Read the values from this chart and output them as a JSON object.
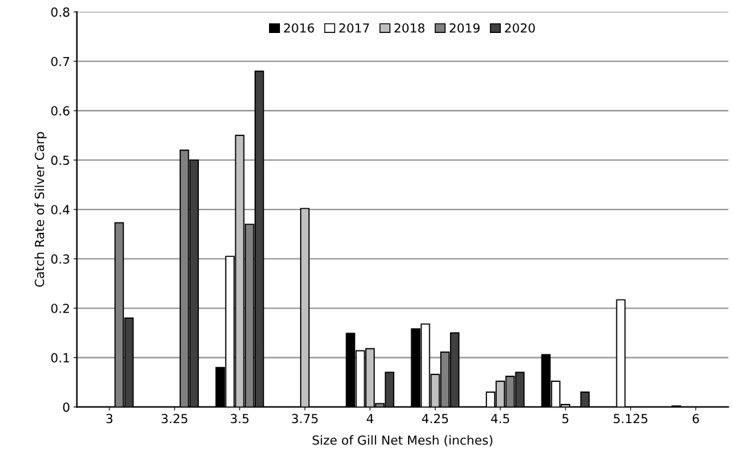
{
  "chart_data": {
    "type": "bar",
    "xlabel": "Size of Gill Net Mesh (inches)",
    "ylabel": "Catch Rate of Silver Carp",
    "categories": [
      "3",
      "3.25",
      "3.5",
      "3.75",
      "4",
      "4.25",
      "4.5",
      "5",
      "5.125",
      "6"
    ],
    "series": [
      {
        "name": "2016",
        "color": "#000000",
        "values": [
          null,
          null,
          0.08,
          null,
          0.149,
          0.158,
          null,
          0.106,
          null,
          0.002
        ]
      },
      {
        "name": "2017",
        "color": "#ffffff",
        "values": [
          null,
          null,
          0.305,
          null,
          0.114,
          0.168,
          0.03,
          0.052,
          0.217,
          null
        ]
      },
      {
        "name": "2018",
        "color": "#c0c0c0",
        "values": [
          null,
          null,
          0.55,
          0.402,
          0.118,
          0.066,
          0.052,
          0.005,
          null,
          null
        ]
      },
      {
        "name": "2019",
        "color": "#808080",
        "values": [
          0.373,
          0.52,
          0.37,
          null,
          0.007,
          0.111,
          0.062,
          null,
          null,
          null
        ]
      },
      {
        "name": "2020",
        "color": "#404040",
        "values": [
          0.18,
          0.5,
          0.68,
          null,
          0.07,
          0.15,
          0.07,
          0.03,
          null,
          null
        ]
      }
    ],
    "ylim": [
      0,
      0.8
    ],
    "yticks": [
      0,
      0.1,
      0.2,
      0.3,
      0.4,
      0.5,
      0.6,
      0.7,
      0.8
    ],
    "grid": "y",
    "legend": "top"
  }
}
